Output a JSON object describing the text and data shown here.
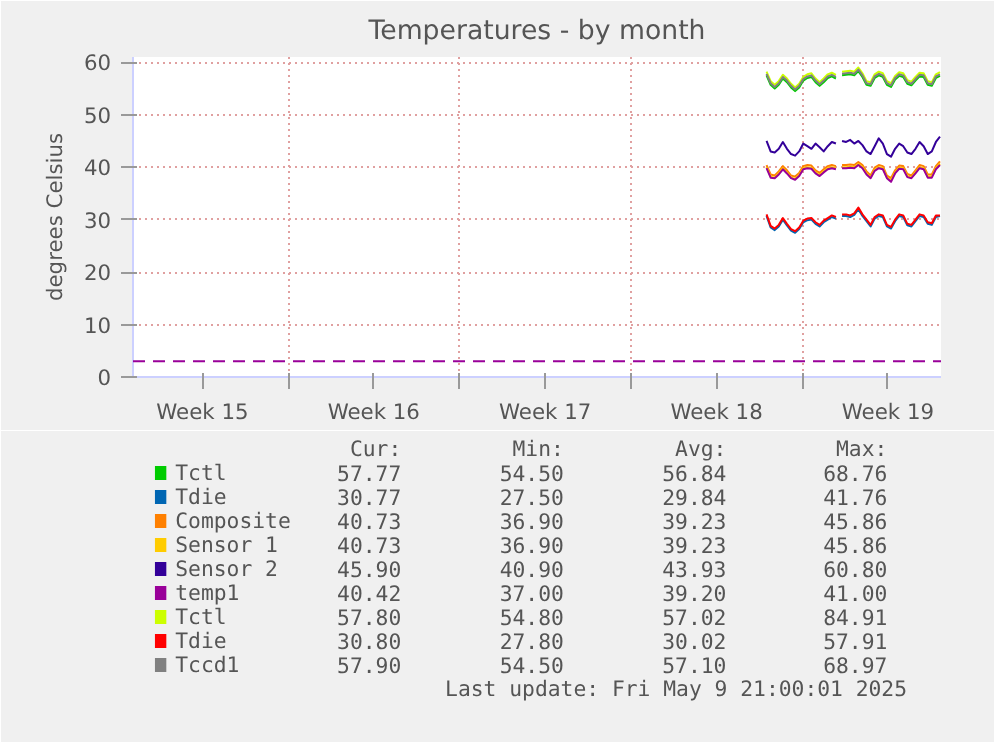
{
  "chart_data": {
    "type": "line",
    "title": "Temperatures - by month",
    "ylabel": "degrees Celsius",
    "x": [
      "2025-05-02T18:00",
      "2025-05-02T22:00",
      "2025-05-03T02:00",
      "2025-05-03T06:00",
      "2025-05-03T10:00",
      "2025-05-03T14:00",
      "2025-05-03T18:00",
      "2025-05-03T22:00",
      "2025-05-04T02:00",
      "2025-05-04T06:00",
      "2025-05-04T10:00",
      "2025-05-04T14:00",
      "2025-05-04T18:00",
      "2025-05-04T22:00",
      "2025-05-05T02:00",
      "2025-05-05T06:00",
      "2025-05-05T10:00",
      "2025-05-05T14:00",
      "2025-05-05T17:00",
      "2025-05-05T20:00",
      "2025-05-06T00:00",
      "2025-05-06T04:00",
      "2025-05-06T08:00",
      "2025-05-06T12:00",
      "2025-05-06T16:00",
      "2025-05-06T20:00",
      "2025-05-07T00:00",
      "2025-05-07T04:00",
      "2025-05-07T08:00",
      "2025-05-07T12:00",
      "2025-05-07T16:00",
      "2025-05-07T20:00",
      "2025-05-08T00:00",
      "2025-05-08T04:00",
      "2025-05-08T08:00",
      "2025-05-08T12:00",
      "2025-05-08T16:00",
      "2025-05-08T20:00",
      "2025-05-09T00:00",
      "2025-05-09T04:00",
      "2025-05-09T08:00",
      "2025-05-09T12:00",
      "2025-05-09T16:00",
      "2025-05-09T20:00"
    ],
    "series": [
      {
        "name": "Tctl",
        "color": "#00cc00",
        "values": [
          57.5,
          55.7,
          55.0,
          55.7,
          56.9,
          56.2,
          55.2,
          54.5,
          55.2,
          56.5,
          57.0,
          57.2,
          56.2,
          55.5,
          56.2,
          57.0,
          57.3,
          56.9,
          null,
          57.5,
          57.6,
          57.7,
          57.5,
          58.3,
          57.2,
          55.7,
          55.5,
          57.0,
          57.5,
          57.2,
          55.7,
          55.3,
          56.7,
          57.4,
          57.2,
          55.9,
          55.6,
          56.5,
          57.3,
          57.2,
          55.7,
          55.5,
          57.0,
          57.4
        ]
      },
      {
        "name": "Tdie",
        "color": "#0066b3",
        "values": [
          30.7,
          28.5,
          28.0,
          28.7,
          30.0,
          28.9,
          27.9,
          27.5,
          28.2,
          29.5,
          29.9,
          30.0,
          29.2,
          28.7,
          29.5,
          30.0,
          30.5,
          30.2,
          null,
          30.7,
          30.7,
          30.5,
          30.9,
          32.0,
          30.7,
          29.7,
          28.7,
          30.2,
          30.7,
          30.5,
          28.7,
          28.3,
          29.7,
          30.7,
          30.5,
          28.9,
          28.7,
          29.7,
          30.7,
          30.5,
          29.2,
          29.0,
          30.5,
          30.7
        ]
      },
      {
        "name": "Composite",
        "color": "#ff8000",
        "values": [
          40.4,
          38.6,
          38.4,
          39.2,
          40.2,
          39.4,
          38.4,
          38.2,
          38.9,
          40.2,
          40.4,
          40.3,
          39.4,
          38.9,
          39.6,
          40.2,
          40.4,
          40.2,
          null,
          40.4,
          40.4,
          40.5,
          40.4,
          41.0,
          40.4,
          39.2,
          38.4,
          39.9,
          40.4,
          40.2,
          38.4,
          37.9,
          39.4,
          40.3,
          40.2,
          38.7,
          38.4,
          39.4,
          40.4,
          40.2,
          38.6,
          38.6,
          40.2,
          41.1
        ]
      },
      {
        "name": "Sensor 1",
        "color": "#ffcc00",
        "values": [
          40.0,
          38.2,
          38.0,
          38.8,
          39.8,
          39.0,
          38.0,
          37.8,
          38.5,
          39.8,
          40.0,
          39.9,
          39.0,
          38.5,
          39.2,
          39.8,
          40.0,
          39.8,
          null,
          40.0,
          40.0,
          40.1,
          40.0,
          40.6,
          40.0,
          38.8,
          38.0,
          39.5,
          40.0,
          39.8,
          38.0,
          37.5,
          39.0,
          39.9,
          39.8,
          38.3,
          38.0,
          39.0,
          40.0,
          39.8,
          38.2,
          38.2,
          39.8,
          40.7
        ]
      },
      {
        "name": "Sensor 2",
        "color": "#330099",
        "values": [
          45.0,
          43.0,
          42.8,
          43.5,
          44.8,
          43.5,
          42.5,
          42.2,
          43.0,
          44.5,
          44.0,
          43.5,
          44.5,
          43.8,
          43.0,
          44.0,
          44.8,
          44.5,
          null,
          45.0,
          44.8,
          45.2,
          44.5,
          45.0,
          44.2,
          43.0,
          42.5,
          44.0,
          45.5,
          44.5,
          42.5,
          42.0,
          43.5,
          44.5,
          44.0,
          42.8,
          42.5,
          43.5,
          44.8,
          44.0,
          42.5,
          43.0,
          44.8,
          45.8
        ]
      },
      {
        "name": "temp1",
        "color": "#990099",
        "values": [
          39.8,
          38.0,
          37.9,
          38.6,
          39.6,
          38.8,
          37.9,
          37.6,
          38.3,
          39.6,
          39.8,
          39.7,
          38.8,
          38.3,
          39.0,
          39.6,
          39.8,
          39.6,
          null,
          39.8,
          39.8,
          39.9,
          39.8,
          40.4,
          39.8,
          38.6,
          37.9,
          39.3,
          39.8,
          39.6,
          37.9,
          37.2,
          38.8,
          39.7,
          39.6,
          38.1,
          37.9,
          38.8,
          39.8,
          39.6,
          38.0,
          38.0,
          39.6,
          40.4
        ]
      },
      {
        "name": "Tctl",
        "color": "#ccff00",
        "values": [
          58.2,
          56.4,
          55.7,
          56.4,
          57.6,
          56.9,
          55.9,
          55.2,
          55.9,
          57.2,
          57.7,
          57.9,
          56.9,
          56.2,
          56.9,
          57.7,
          58.0,
          57.6,
          null,
          58.2,
          58.3,
          58.4,
          58.2,
          59.0,
          57.9,
          56.4,
          56.2,
          57.7,
          58.2,
          57.9,
          56.4,
          56.0,
          57.4,
          58.1,
          57.9,
          56.6,
          56.3,
          57.2,
          58.0,
          57.9,
          56.4,
          56.2,
          57.7,
          58.1
        ]
      },
      {
        "name": "Tdie",
        "color": "#ff0000",
        "values": [
          31.0,
          28.8,
          28.3,
          29.0,
          30.3,
          29.2,
          28.2,
          27.8,
          28.5,
          29.8,
          30.2,
          30.3,
          29.5,
          29.0,
          29.8,
          30.3,
          30.8,
          30.5,
          null,
          31.0,
          31.0,
          30.8,
          31.2,
          32.3,
          31.0,
          30.0,
          29.0,
          30.5,
          31.0,
          30.8,
          29.0,
          28.6,
          30.0,
          31.0,
          30.8,
          29.2,
          29.0,
          30.0,
          31.0,
          30.8,
          29.5,
          29.3,
          30.8,
          30.8
        ]
      },
      {
        "name": "Tccd1",
        "color": "#808080",
        "values": [
          57.8,
          56.0,
          55.3,
          56.0,
          57.2,
          56.5,
          55.5,
          54.8,
          55.5,
          56.8,
          57.3,
          57.5,
          56.5,
          55.8,
          56.5,
          57.3,
          57.6,
          57.2,
          null,
          57.8,
          57.9,
          58.0,
          57.8,
          58.6,
          57.5,
          56.0,
          55.8,
          57.3,
          57.8,
          57.5,
          56.0,
          55.6,
          57.0,
          57.7,
          57.5,
          56.2,
          55.9,
          56.8,
          57.6,
          57.5,
          56.0,
          55.8,
          57.3,
          57.7
        ]
      }
    ],
    "xlim": [
      "2025-04-06T21:00",
      "2025-05-09T21:00"
    ],
    "xticks": [
      {
        "value": "2025-04-09T17:00",
        "label": "Week 15"
      },
      {
        "value": "2025-04-13T05:00",
        "label": null
      },
      {
        "value": "2025-04-16T17:00",
        "label": "Week 16"
      },
      {
        "value": "2025-04-20T05:00",
        "label": null
      },
      {
        "value": "2025-04-23T17:00",
        "label": "Week 17"
      },
      {
        "value": "2025-04-27T05:00",
        "label": null
      },
      {
        "value": "2025-04-30T17:00",
        "label": "Week 18"
      },
      {
        "value": "2025-05-04T05:00",
        "label": null
      },
      {
        "value": "2025-05-07T17:00",
        "label": "Week 19"
      }
    ],
    "ylim": [
      0,
      61
    ],
    "yticks": [
      0,
      10,
      20,
      30,
      40,
      50,
      60
    ],
    "grid": true,
    "legend": "bottom",
    "ref_lines": [
      {
        "axis": "y",
        "value": 3,
        "color": "#990099",
        "line_style": "dashed"
      }
    ],
    "annotations": [
      "Cur:",
      "Min:",
      "Avg:",
      "Max:",
      "57.77",
      "54.50",
      "56.84",
      "68.76",
      "30.77",
      "27.50",
      "29.84",
      "41.76",
      "40.73",
      "36.90",
      "39.23",
      "45.86",
      "40.73",
      "36.90",
      "39.23",
      "45.86",
      "45.90",
      "40.90",
      "43.93",
      "60.80",
      "40.42",
      "37.00",
      "39.20",
      "41.00",
      "57.80",
      "54.80",
      "57.02",
      "84.91",
      "30.80",
      "27.80",
      "30.02",
      "57.91",
      "57.90",
      "54.50",
      "57.10",
      "68.97",
      "Last update: Fri May  9 21:00:01 2025"
    ]
  }
}
